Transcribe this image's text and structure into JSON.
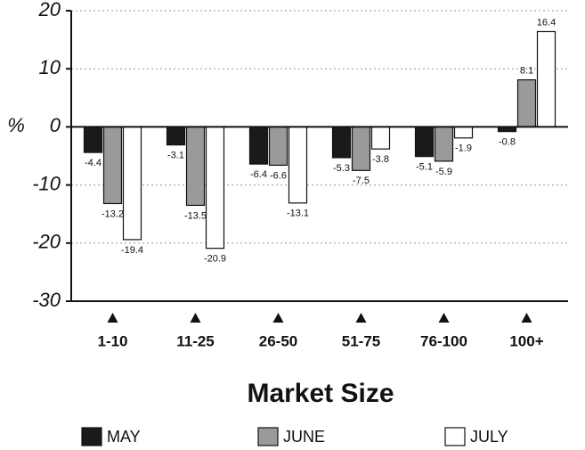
{
  "chart_data": {
    "type": "bar",
    "categories": [
      "1-10",
      "11-25",
      "26-50",
      "51-75",
      "76-100",
      "100+"
    ],
    "series": [
      {
        "name": "MAY",
        "color": "#1a1a1a",
        "values": [
          -4.4,
          -3.1,
          -6.4,
          -5.3,
          -5.1,
          -0.8
        ]
      },
      {
        "name": "JUNE",
        "color": "#9a9a9a",
        "values": [
          -13.2,
          -13.5,
          -6.6,
          -7.5,
          -5.9,
          8.1
        ]
      },
      {
        "name": "JULY",
        "color": "#ffffff",
        "values": [
          -19.4,
          -20.9,
          -13.1,
          -3.8,
          -1.9,
          16.4
        ]
      }
    ],
    "ylabel": "%",
    "xlabel": "Market Size",
    "ylim": [
      -30,
      20
    ],
    "yticks": [
      20,
      10,
      0,
      -10,
      -20,
      -30
    ],
    "grid": true
  }
}
